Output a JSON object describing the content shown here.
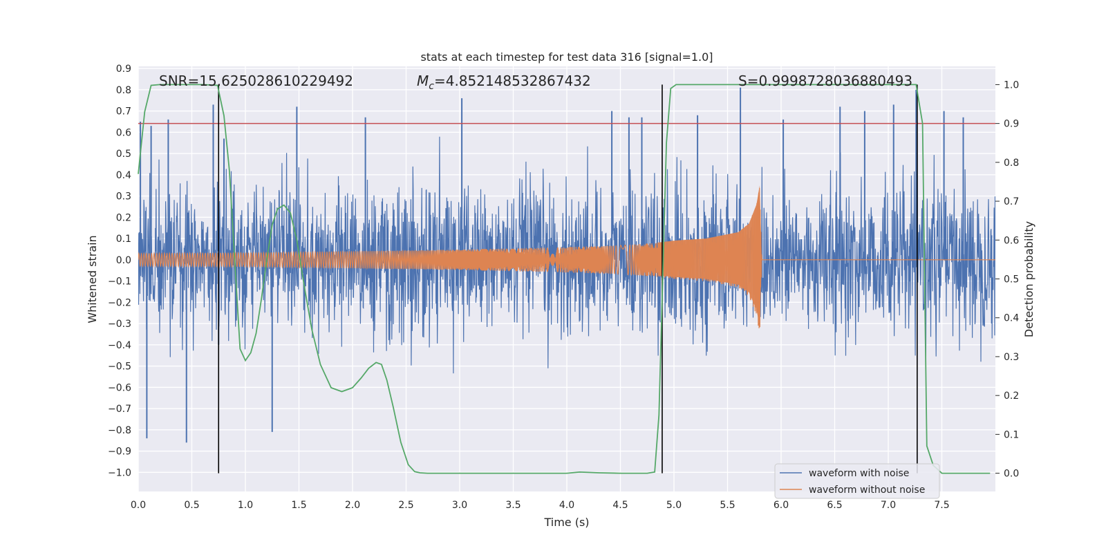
{
  "chart_data": {
    "type": "line",
    "title": "stats at each timestep for test data 316 [signal=1.0]",
    "xlabel": "Time (s)",
    "ylabel": "Whitened strain",
    "y2label": "Detection probability",
    "xlim": [
      0.0,
      8.0
    ],
    "ylim": [
      -1.09,
      0.91
    ],
    "y2lim": [
      -0.047,
      1.047
    ],
    "grid": true,
    "x_ticks": [
      "0.0",
      "0.5",
      "1.0",
      "1.5",
      "2.0",
      "2.5",
      "3.0",
      "3.5",
      "4.0",
      "4.5",
      "5.0",
      "5.5",
      "6.0",
      "6.5",
      "7.0",
      "7.5"
    ],
    "y_ticks": [
      "0.9",
      "0.8",
      "0.7",
      "0.6",
      "0.5",
      "0.4",
      "0.3",
      "0.2",
      "0.1",
      "0.0",
      "−0.1",
      "−0.2",
      "−0.3",
      "−0.4",
      "−0.5",
      "−0.6",
      "−0.7",
      "−0.8",
      "−0.9",
      "−1.0"
    ],
    "y2_ticks": [
      "1.0",
      "0.9",
      "0.8",
      "0.7",
      "0.6",
      "0.5",
      "0.4",
      "0.3",
      "0.2",
      "0.1",
      "0.0"
    ],
    "annotations": {
      "snr": "SNR=15.625028610229492",
      "mc_symbol": "M",
      "mc_sub": "c",
      "mc_value": "=4.852148532867432",
      "s": "S=0.9998728036880493"
    },
    "threshold": {
      "value": 0.9,
      "axis": "y2",
      "color": "#c44e52"
    },
    "vertical_lines": [
      0.75,
      4.89,
      7.27
    ],
    "series": [
      {
        "name": "waveform with noise",
        "color": "#4c72b0",
        "noise_std": 0.17,
        "spike_times": [
          0.02,
          0.08,
          0.12,
          0.28,
          0.45,
          0.7,
          0.75,
          0.8,
          1.25,
          1.48,
          2.12,
          3.02,
          4.42,
          4.58,
          4.7,
          5.22,
          5.62,
          6.02,
          6.55,
          6.78,
          7.05,
          7.26,
          7.52,
          7.7
        ],
        "spike_values": [
          0.65,
          -0.84,
          0.63,
          0.66,
          -0.86,
          0.73,
          -0.4,
          0.57,
          -0.81,
          0.72,
          0.67,
          0.76,
          0.7,
          0.67,
          0.67,
          0.68,
          0.81,
          0.66,
          0.72,
          0.7,
          0.73,
          0.8,
          0.7,
          0.67
        ]
      },
      {
        "name": "waveform without noise",
        "color": "#dd8452",
        "envelope_t": [
          0.0,
          1.0,
          2.0,
          3.0,
          4.0,
          4.5,
          4.8,
          5.0,
          5.3,
          5.6,
          5.7,
          5.77,
          5.8,
          5.82,
          8.0
        ],
        "envelope_amp": [
          0.03,
          0.033,
          0.04,
          0.048,
          0.06,
          0.068,
          0.078,
          0.09,
          0.1,
          0.13,
          0.17,
          0.26,
          0.35,
          0.0,
          0.0
        ]
      },
      {
        "name": "Detection probability",
        "color": "#55a868",
        "axis": "y2",
        "x": [
          0.0,
          0.06,
          0.12,
          0.2,
          0.3,
          0.45,
          0.6,
          0.74,
          0.8,
          0.85,
          0.9,
          0.95,
          1.0,
          1.05,
          1.1,
          1.15,
          1.2,
          1.25,
          1.3,
          1.36,
          1.42,
          1.48,
          1.55,
          1.62,
          1.7,
          1.8,
          1.9,
          2.0,
          2.08,
          2.15,
          2.22,
          2.27,
          2.32,
          2.38,
          2.45,
          2.52,
          2.58,
          2.63,
          2.7,
          3.0,
          3.5,
          4.0,
          4.12,
          4.3,
          4.5,
          4.75,
          4.82,
          4.86,
          4.89,
          4.93,
          4.97,
          5.02,
          5.2,
          6.0,
          6.5,
          7.0,
          7.26,
          7.32,
          7.36,
          7.42,
          7.5,
          7.7,
          7.95
        ],
        "y": [
          0.77,
          0.93,
          0.998,
          1.0,
          1.0,
          1.0,
          1.0,
          0.998,
          0.92,
          0.78,
          0.55,
          0.32,
          0.29,
          0.31,
          0.36,
          0.45,
          0.55,
          0.64,
          0.68,
          0.69,
          0.67,
          0.6,
          0.48,
          0.37,
          0.28,
          0.22,
          0.21,
          0.22,
          0.245,
          0.27,
          0.285,
          0.28,
          0.24,
          0.17,
          0.08,
          0.022,
          0.004,
          0.001,
          0.0,
          0.0,
          0.0,
          0.0,
          0.003,
          0.001,
          0.0,
          0.0,
          0.003,
          0.15,
          0.45,
          0.85,
          0.99,
          1.0,
          1.0,
          1.0,
          1.0,
          1.0,
          1.0,
          0.9,
          0.07,
          0.02,
          0.0,
          0.0,
          0.0
        ]
      }
    ],
    "legend": {
      "position": "lower-right",
      "entries": [
        "waveform with noise",
        "waveform without noise"
      ]
    }
  }
}
